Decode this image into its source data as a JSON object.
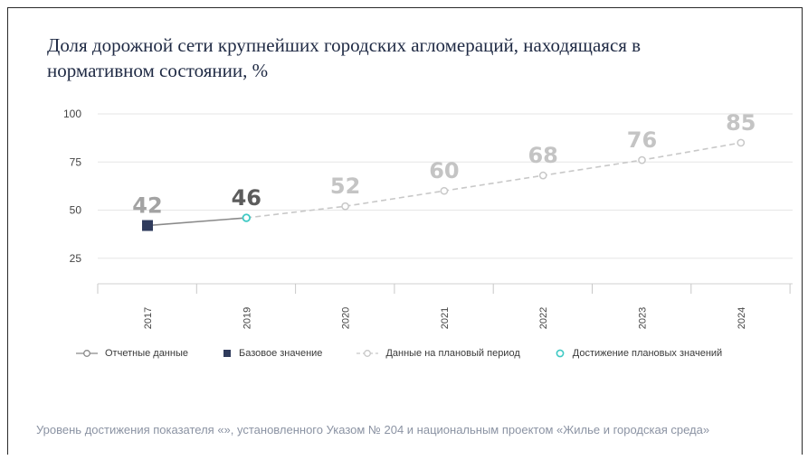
{
  "chart_data": {
    "type": "line",
    "title": "Доля дорожной сети крупнейших городских агломераций, находящаяся в нормативном состоянии, %",
    "categories": [
      "2017",
      "2019",
      "2020",
      "2021",
      "2022",
      "2023",
      "2024"
    ],
    "y_ticks": [
      100,
      75,
      50,
      25
    ],
    "ylim": [
      0,
      100
    ],
    "grid": true,
    "series": [
      {
        "name": "Отчетные данные",
        "x": [
          "2017",
          "2019"
        ],
        "values": [
          42,
          46
        ],
        "style": "solid"
      },
      {
        "name": "Данные на плановый период",
        "x": [
          "2019",
          "2020",
          "2021",
          "2022",
          "2023",
          "2024"
        ],
        "values": [
          46,
          52,
          60,
          68,
          76,
          85
        ],
        "style": "dashed"
      }
    ],
    "base_value": {
      "name": "Базовое значение",
      "x": "2017",
      "value": 42
    },
    "achievement": {
      "name": "Достижение плановых значений",
      "x": "2019",
      "value": 46
    },
    "data_labels": [
      "42",
      "46",
      "52",
      "60",
      "68",
      "76",
      "85"
    ],
    "legend": {
      "position": "bottom",
      "items": [
        "Отчетные данные",
        "Базовое значение",
        "Данные на плановый период",
        "Достижение плановых значений"
      ]
    },
    "colors": {
      "reported": "#8a8a8a",
      "base": "#2f3b5c",
      "plan": "#c8c8c8",
      "achievement": "#3fc9c4",
      "label_reported": "#a3a3a3",
      "label_highlight": "#5c5c5c",
      "label_plan": "#c4c4c4",
      "grid": "#e6e6e6",
      "axis_text": "#444444"
    }
  },
  "footer_text": "Уровень достижения показателя «», установленного Указом № 204 и национальным проектом «Жилье и городская среда»"
}
